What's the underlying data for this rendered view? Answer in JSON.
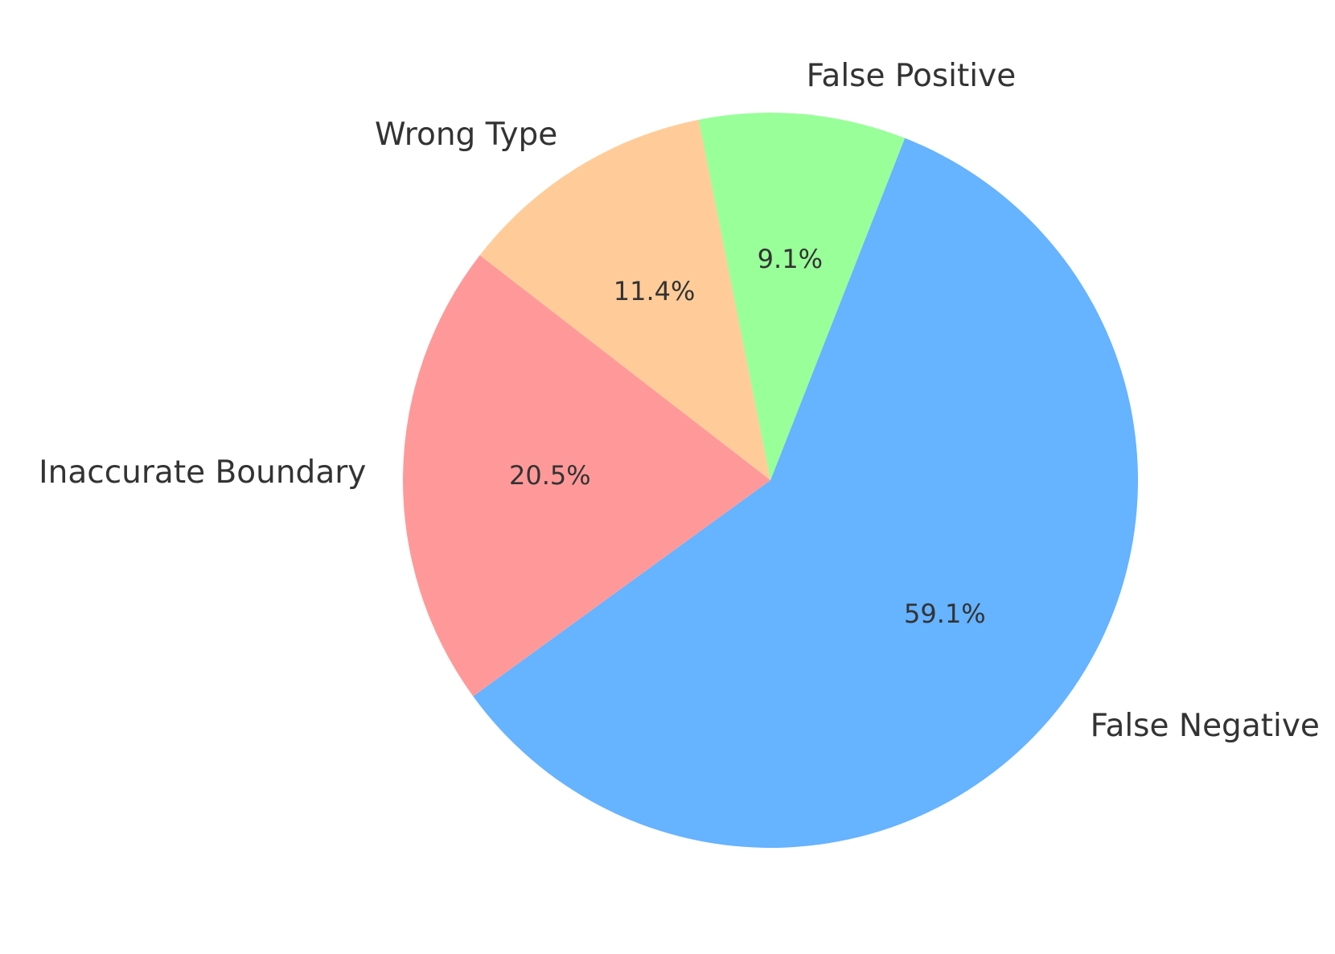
{
  "chart_data": {
    "type": "pie",
    "title": "",
    "start_angle_deg": 216,
    "direction": "counterclockwise",
    "slices": [
      {
        "label": "False Negative",
        "value": 59.1,
        "pct_label": "59.1%",
        "color": "#66b3ff"
      },
      {
        "label": "False Positive",
        "value": 9.1,
        "pct_label": "9.1%",
        "color": "#99ff99"
      },
      {
        "label": "Wrong Type",
        "value": 11.4,
        "pct_label": "11.4%",
        "color": "#ffcc99"
      },
      {
        "label": "Inaccurate Boundary",
        "value": 20.5,
        "pct_label": "20.5%",
        "color": "#ff9999"
      }
    ]
  }
}
